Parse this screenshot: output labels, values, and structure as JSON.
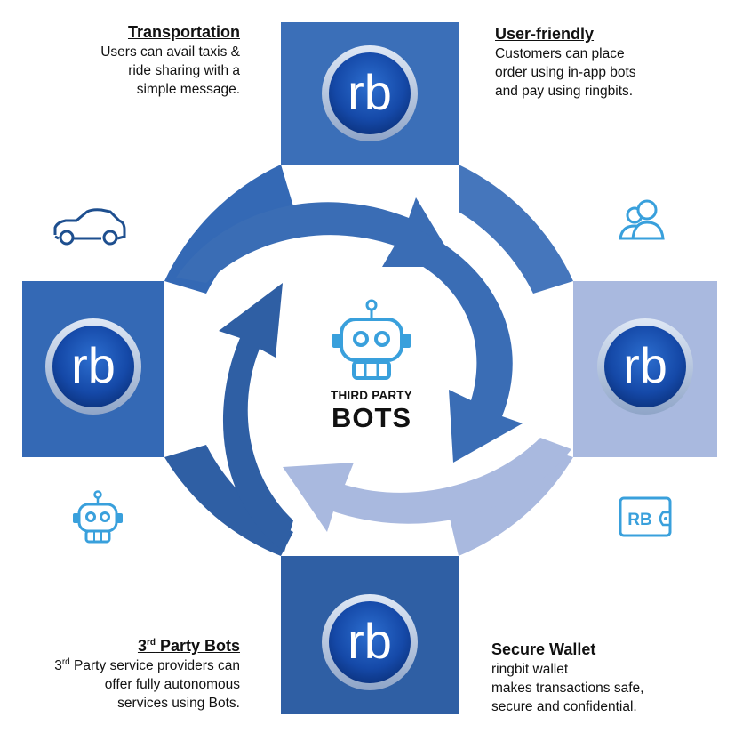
{
  "colors": {
    "panel_dark": "#2f5fa4",
    "panel_mid": "#3b6fb8",
    "panel_light": "#a9b9df",
    "arrow_blue": "#3a6db5",
    "icon_blue": "#39a0dc",
    "text_dark": "#111111"
  },
  "center": {
    "subtitle": "THIRD PARTY",
    "title": "BOTS",
    "icon": "robot-icon"
  },
  "logo_text": "rb",
  "blocks": {
    "transportation": {
      "heading": "Transportation",
      "lines": [
        "Users can avail taxis &",
        "ride sharing with a",
        "simple message."
      ],
      "icon": "car-icon"
    },
    "user_friendly": {
      "heading": "User-friendly",
      "lines": [
        "Customers can place",
        "order using in-app bots",
        "and pay using ringbits."
      ],
      "icon": "users-icon"
    },
    "third_party": {
      "heading_prefix": "3",
      "heading_sup": "rd",
      "heading_rest": " Party Bots",
      "line1_prefix": "3",
      "line1_sup": "rd",
      "line1_rest": " Party service providers can",
      "lines": [
        "offer fully autonomous",
        "services using Bots."
      ],
      "icon": "robot-icon"
    },
    "secure_wallet": {
      "heading": "Secure Wallet",
      "lines": [
        "ringbit wallet",
        "makes transactions safe,",
        "secure and confidential."
      ],
      "icon": "wallet-icon",
      "wallet_label": "RB"
    }
  }
}
